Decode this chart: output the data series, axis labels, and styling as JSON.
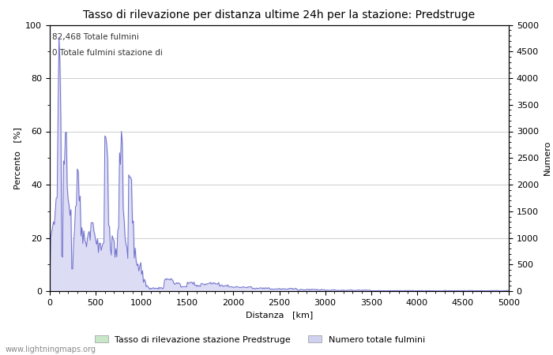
{
  "title": "Tasso di rilevazione per distanza ultime 24h per la stazione: Predstruge",
  "xlabel": "Distanza   [km]",
  "ylabel_left": "Percento   [%]",
  "ylabel_right": "Numero",
  "annotation_line1": "82,468 Totale fulmini",
  "annotation_line2": "0 Totale fulmini stazione di",
  "xlim": [
    0,
    5000
  ],
  "ylim_left": [
    0,
    100
  ],
  "ylim_right": [
    0,
    5000
  ],
  "xticks": [
    0,
    500,
    1000,
    1500,
    2000,
    2500,
    3000,
    3500,
    4000,
    4500,
    5000
  ],
  "yticks_left": [
    0,
    20,
    40,
    60,
    80,
    100
  ],
  "yticks_right": [
    0,
    500,
    1000,
    1500,
    2000,
    2500,
    3000,
    3500,
    4000,
    4500,
    5000
  ],
  "legend_label1": "Tasso di rilevazione stazione Predstruge",
  "legend_label2": "Numero totale fulmini",
  "legend_color1": "#c8e6c8",
  "legend_color2": "#d0d0f0",
  "watermark": "www.lightningmaps.org",
  "bg_color": "#ffffff",
  "grid_color": "#bbbbbb",
  "line_color": "#7070cc",
  "fill_color_number": "#dcdcf5",
  "fill_color_detection": "#d4ecd4",
  "title_fontsize": 10,
  "axis_fontsize": 8,
  "tick_fontsize": 8,
  "legend_fontsize": 8
}
